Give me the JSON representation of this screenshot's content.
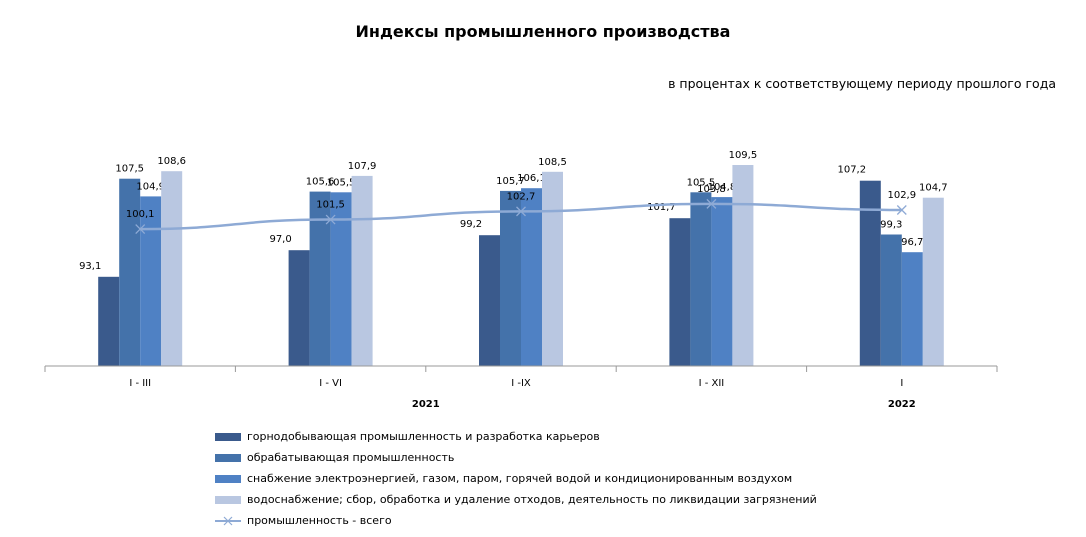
{
  "title": "Индексы промышленного производства",
  "subtitle": "в процентах к соответствующему периоду прошлого года",
  "chart_data": {
    "type": "bar",
    "categories": [
      "I - III",
      "I - VI",
      "I -IX",
      "I - XII",
      "I"
    ],
    "groups": [
      {
        "label": "2021",
        "categories": [
          "I - III",
          "I - VI",
          "I -IX",
          "I - XII"
        ]
      },
      {
        "label": "2022",
        "categories": [
          "I"
        ]
      }
    ],
    "series": [
      {
        "name": "горнодобывающая промышленность  и разработка карьеров",
        "color": "#3a5a8c",
        "values": [
          93.1,
          97.0,
          99.2,
          101.7,
          107.2
        ]
      },
      {
        "name": "обрабатывающая промышленность",
        "color": "#4472aa",
        "values": [
          107.5,
          105.6,
          105.7,
          105.5,
          99.3
        ]
      },
      {
        "name": "снабжение электроэнергией, газом, паром, горячей водой и  кондиционированным воздухом",
        "color": "#4f81c4",
        "values": [
          104.9,
          105.5,
          106.1,
          104.8,
          96.7
        ]
      },
      {
        "name": "водоснабжение; сбор, обработка и удаление отходов, деятельность по ликвидации загрязнений",
        "color": "#b9c7e1",
        "values": [
          108.6,
          107.9,
          108.5,
          109.5,
          104.7
        ]
      }
    ],
    "line_series": {
      "name": "промышленность - всего",
      "color": "#8eaad5",
      "values": [
        100.1,
        101.5,
        102.7,
        103.8,
        102.9
      ]
    },
    "bar_labels": [
      [
        "93,1",
        "107,5",
        "104,9",
        "108,6"
      ],
      [
        "97,0",
        "105,6",
        "105,5",
        "107,9"
      ],
      [
        "99,2",
        "105,7",
        "106,1",
        "108,5"
      ],
      [
        "101,7",
        "105,5",
        "104,8",
        "109,5"
      ],
      [
        "107,2",
        "99,3",
        "96,7",
        "104,7"
      ]
    ],
    "line_labels": [
      "100,1",
      "101,5",
      "102,7",
      "103,8",
      "102,9"
    ],
    "ylim": [
      80,
      112
    ],
    "grid": false,
    "legend_position": "bottom"
  }
}
